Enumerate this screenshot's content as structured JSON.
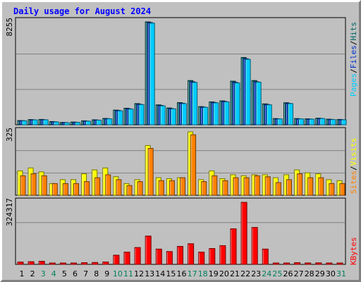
{
  "chart_data": {
    "type": "bar",
    "title": "Daily usage for August 2024",
    "days": [
      "1",
      "2",
      "3",
      "4",
      "5",
      "6",
      "7",
      "8",
      "9",
      "10",
      "11",
      "12",
      "13",
      "14",
      "15",
      "16",
      "17",
      "18",
      "19",
      "20",
      "21",
      "22",
      "23",
      "24",
      "25",
      "26",
      "27",
      "28",
      "29",
      "30",
      "31"
    ],
    "weekend_days": [
      "3",
      "4",
      "10",
      "11",
      "17",
      "18",
      "24",
      "25",
      "31"
    ],
    "panels": [
      {
        "id": "top",
        "max_label": "8255",
        "ymax": 8255,
        "series": [
          {
            "name": "Hits",
            "color": "#006666",
            "values": [
              340,
              420,
              430,
              260,
              190,
              220,
              320,
              400,
              510,
              1180,
              1330,
              1700,
              8255,
              1600,
              1350,
              1780,
              3550,
              1460,
              1840,
              1920,
              3500,
              5400,
              3550,
              1680,
              500,
              1770,
              500,
              480,
              530,
              450,
              430
            ]
          },
          {
            "name": "Files",
            "color": "#0033cc",
            "values": [
              330,
              400,
              410,
              240,
              180,
              200,
              300,
              380,
              490,
              1150,
              1290,
              1650,
              8200,
              1550,
              1300,
              1730,
              3450,
              1420,
              1790,
              1870,
              3400,
              5300,
              3450,
              1630,
              480,
              1720,
              480,
              460,
              510,
              430,
              410
            ]
          },
          {
            "name": "Pages",
            "color": "#00ccff",
            "values": [
              320,
              390,
              400,
              230,
              170,
              190,
              290,
              370,
              480,
              1120,
              1260,
              1620,
              8155,
              1520,
              1280,
              1700,
              3400,
              1400,
              1760,
              1840,
              3360,
              5250,
              3420,
              1600,
              470,
              1700,
              470,
              450,
              500,
              420,
              400
            ]
          }
        ]
      },
      {
        "id": "middle",
        "max_label": "325",
        "ymax": 325,
        "series": [
          {
            "name": "Visits",
            "color": "#ffff00",
            "values": [
              125,
              140,
              120,
              60,
              80,
              80,
              110,
              130,
              140,
              95,
              60,
              80,
              255,
              90,
              85,
              90,
              325,
              80,
              125,
              85,
              105,
              100,
              105,
              105,
              90,
              105,
              130,
              115,
              110,
              80,
              75
            ]
          },
          {
            "name": "Sites",
            "color": "#ff8000",
            "values": [
              100,
              110,
              100,
              60,
              60,
              60,
              70,
              90,
              105,
              80,
              50,
              70,
              240,
              75,
              75,
              90,
              310,
              70,
              100,
              75,
              90,
              90,
              100,
              95,
              65,
              80,
              110,
              90,
              90,
              60,
              60
            ]
          }
        ]
      },
      {
        "id": "bottom",
        "max_label": "324317",
        "ymax": 324317,
        "series": [
          {
            "name": "KBytes",
            "color": "#ff0000",
            "values": [
              12000,
              14000,
              16000,
              4500,
              3500,
              4500,
              9000,
              10000,
              12500,
              48000,
              64000,
              88000,
              148000,
              80000,
              67000,
              94000,
              108000,
              64000,
              83000,
              98000,
              186000,
              324317,
              193000,
              80000,
              7000,
              7000,
              9000,
              7500,
              8000,
              7000,
              7000
            ]
          }
        ]
      }
    ],
    "legends": {
      "top": [
        {
          "text": "Pages",
          "color": "#00ccff"
        },
        {
          "text": "/",
          "color": "#000000"
        },
        {
          "text": "Files",
          "color": "#0033cc"
        },
        {
          "text": "/",
          "color": "#000000"
        },
        {
          "text": "Hits",
          "color": "#006666"
        }
      ],
      "middle": [
        {
          "text": "Sites",
          "color": "#ff8000"
        },
        {
          "text": "/",
          "color": "#000000"
        },
        {
          "text": "Visits",
          "color": "#ffff00"
        }
      ],
      "bottom": [
        {
          "text": "KBytes",
          "color": "#ff0000"
        }
      ]
    },
    "colors": {
      "background": "#c0c0c0",
      "title": "#0000ff",
      "weekday_label": "#000000",
      "weekend_label": "#00805c"
    }
  }
}
